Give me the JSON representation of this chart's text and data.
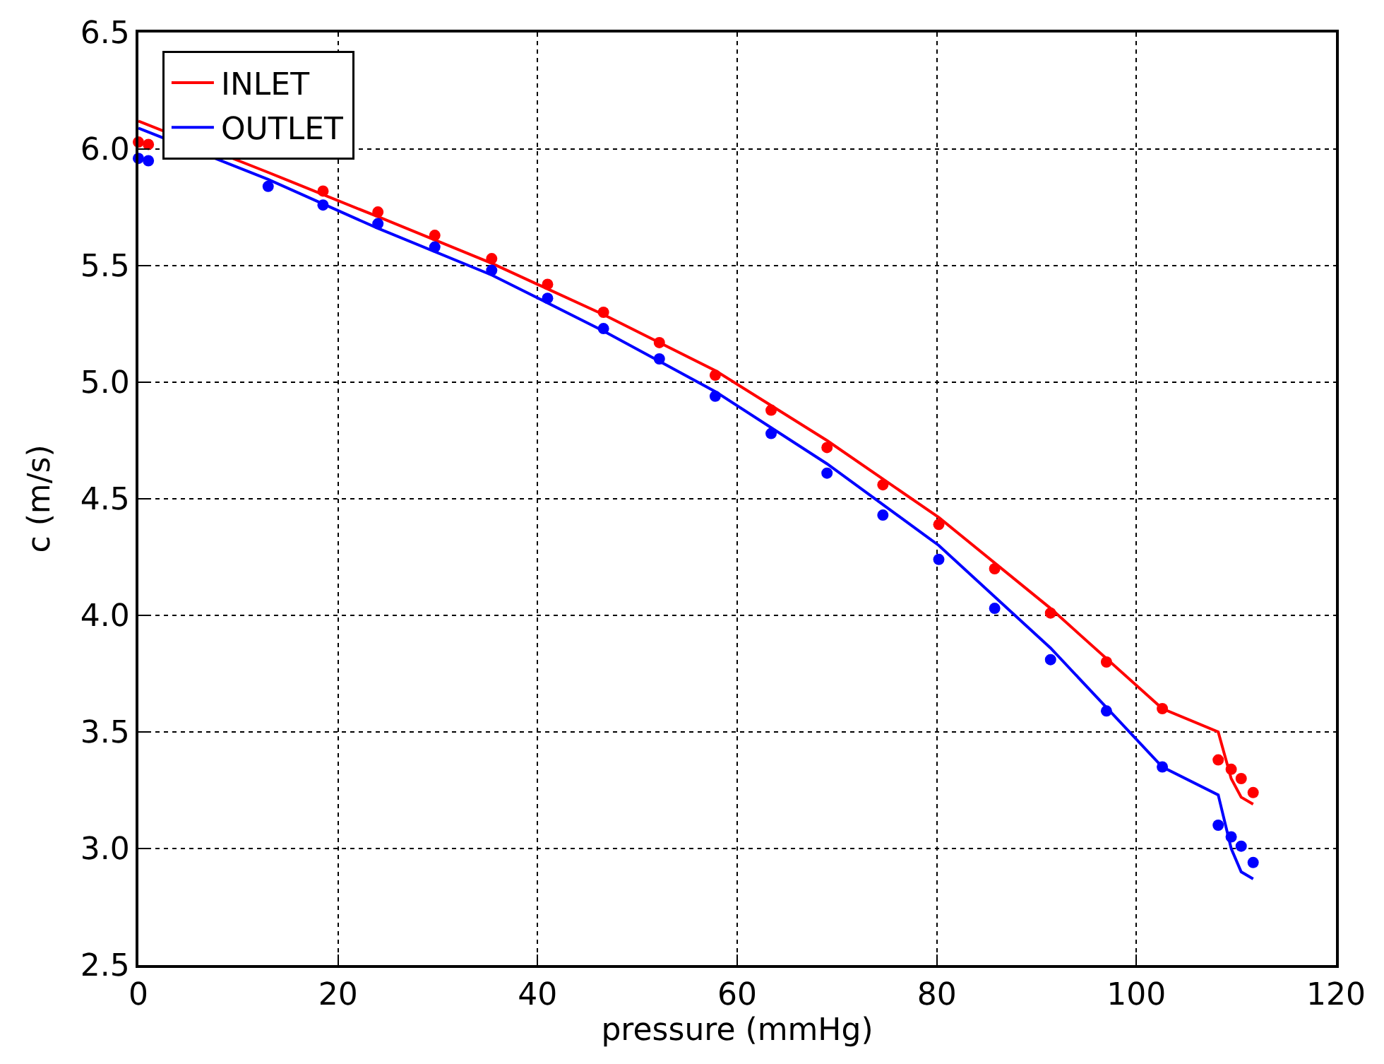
{
  "chart_data": {
    "type": "line",
    "xlabel": "pressure (mmHg)",
    "ylabel": "c (m/s)",
    "xlim": [
      0,
      120
    ],
    "ylim": [
      2.5,
      6.5
    ],
    "xticks": [
      0,
      20,
      40,
      60,
      80,
      100,
      120
    ],
    "yticks": [
      {
        "value": 2.5,
        "label": "2.5"
      },
      {
        "value": 3.0,
        "label": "3.0"
      },
      {
        "value": 3.5,
        "label": "3.5"
      },
      {
        "value": 4.0,
        "label": "4.0"
      },
      {
        "value": 4.5,
        "label": "4.5"
      },
      {
        "value": 5.0,
        "label": "5.0"
      },
      {
        "value": 5.5,
        "label": "5.5"
      },
      {
        "value": 6.0,
        "label": "6.0"
      },
      {
        "value": 6.5,
        "label": "6.5"
      }
    ],
    "grid": true,
    "legend": "top left",
    "series": [
      {
        "name": "INLET",
        "color": "#ff0000",
        "marker": "none",
        "x": [
          0,
          13,
          24,
          35.4,
          46.6,
          57.8,
          69,
          80.2,
          91.4,
          102.6,
          108.2,
          109.5,
          110.5,
          111.7
        ],
        "values": [
          6.12,
          5.9,
          5.71,
          5.51,
          5.29,
          5.05,
          4.75,
          4.42,
          4.03,
          3.6,
          3.5,
          3.3,
          3.22,
          3.19
        ]
      },
      {
        "name": "OUTLET",
        "color": "#0000ff",
        "marker": "none",
        "x": [
          0,
          13,
          24,
          35.4,
          46.6,
          57.8,
          69,
          80.2,
          91.4,
          102.6,
          108.2,
          109.5,
          110.5,
          111.7
        ],
        "values": [
          6.09,
          5.87,
          5.66,
          5.46,
          5.22,
          4.96,
          4.65,
          4.3,
          3.86,
          3.35,
          3.23,
          3.0,
          2.9,
          2.87
        ]
      },
      {
        "type": "scatter",
        "color": "#ff0000",
        "marker": "circle",
        "x": [
          0,
          1,
          18.5,
          24,
          29.7,
          35.4,
          41,
          46.6,
          52.2,
          57.8,
          63.4,
          69,
          74.6,
          80.2,
          85.8,
          91.4,
          97,
          102.6,
          108.2,
          109.5,
          110.5,
          111.7
        ],
        "values": [
          6.03,
          6.02,
          5.82,
          5.73,
          5.63,
          5.53,
          5.42,
          5.3,
          5.17,
          5.03,
          4.88,
          4.72,
          4.56,
          4.39,
          4.2,
          4.01,
          3.8,
          3.6,
          3.38,
          3.34,
          3.3,
          3.24
        ]
      },
      {
        "type": "scatter",
        "color": "#0000ff",
        "marker": "circle",
        "x": [
          0,
          1,
          13,
          18.5,
          24,
          29.7,
          35.4,
          41,
          46.6,
          52.2,
          57.8,
          63.4,
          69,
          74.6,
          80.2,
          85.8,
          91.4,
          97,
          102.6,
          108.2,
          109.5,
          110.5,
          111.7
        ],
        "values": [
          5.96,
          5.95,
          5.84,
          5.76,
          5.68,
          5.58,
          5.48,
          5.36,
          5.23,
          5.1,
          4.94,
          4.78,
          4.61,
          4.43,
          4.24,
          4.03,
          3.81,
          3.59,
          3.35,
          3.1,
          3.05,
          3.01,
          2.94
        ]
      }
    ]
  }
}
